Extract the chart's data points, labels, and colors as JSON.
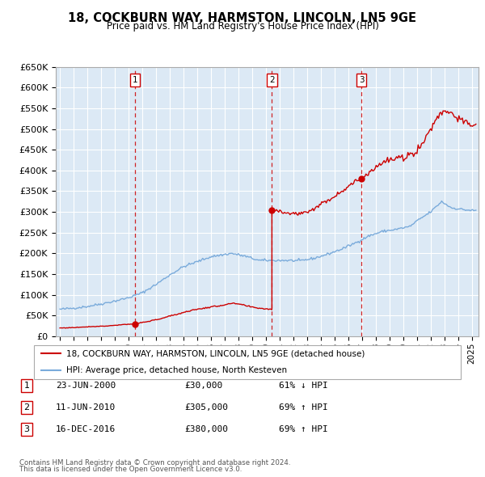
{
  "title": "18, COCKBURN WAY, HARMSTON, LINCOLN, LN5 9GE",
  "subtitle": "Price paid vs. HM Land Registry's House Price Index (HPI)",
  "legend_line1": "18, COCKBURN WAY, HARMSTON, LINCOLN, LN5 9GE (detached house)",
  "legend_line2": "HPI: Average price, detached house, North Kesteven",
  "footer1": "Contains HM Land Registry data © Crown copyright and database right 2024.",
  "footer2": "This data is licensed under the Open Government Licence v3.0.",
  "sales": [
    {
      "num": 1,
      "date": "23-JUN-2000",
      "price": 30000,
      "pct": "61%",
      "dir": "↓",
      "year": 2000.47
    },
    {
      "num": 2,
      "date": "11-JUN-2010",
      "price": 305000,
      "pct": "69%",
      "dir": "↑",
      "year": 2010.44
    },
    {
      "num": 3,
      "date": "16-DEC-2016",
      "price": 380000,
      "pct": "69%",
      "dir": "↑",
      "year": 2016.96
    }
  ],
  "red_line_color": "#cc0000",
  "blue_line_color": "#7aabdb",
  "background_color": "#dce9f5",
  "grid_color": "#ffffff",
  "ylim": [
    0,
    650000
  ],
  "yticks": [
    0,
    50000,
    100000,
    150000,
    200000,
    250000,
    300000,
    350000,
    400000,
    450000,
    500000,
    550000,
    600000,
    650000
  ],
  "xlim_start": 1994.7,
  "xlim_end": 2025.5
}
